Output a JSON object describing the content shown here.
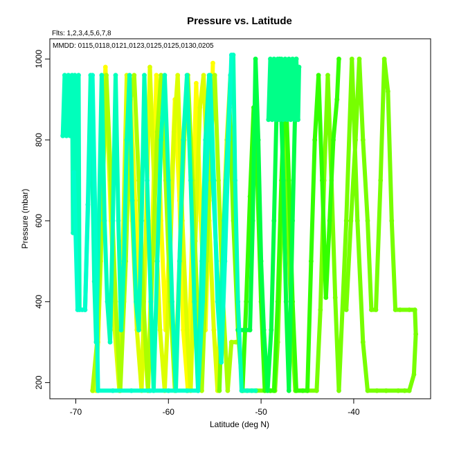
{
  "chart_data": {
    "type": "line",
    "title": "Pressure vs. Latitude",
    "subtitle_flts": "Flts: 1,2,3,4,5,6,7,8",
    "subtitle_mmdd": "MMDD: 0115,0118,0121,0123,0125,0125,0130,0205",
    "xlabel": "Latitude (deg N)",
    "ylabel": "Pressure (mbar)",
    "xlim": [
      -72.8,
      -31.7
    ],
    "ylim": [
      1050,
      160
    ],
    "y_reversed": true,
    "x_ticks": [
      -70,
      -60,
      -50,
      -40
    ],
    "y_ticks": [
      200,
      400,
      600,
      800,
      1000
    ],
    "marker": "filled-circle",
    "series": [
      {
        "color": "#FFFF00",
        "points": [
          [
            -68.1,
            180
          ],
          [
            -67.6,
            300
          ],
          [
            -67.2,
            600
          ],
          [
            -66.8,
            980
          ],
          [
            -66.2,
            600
          ],
          [
            -65.8,
            400
          ],
          [
            -65.3,
            180
          ],
          [
            -64.8,
            400
          ],
          [
            -64.4,
            700
          ],
          [
            -64.1,
            920
          ],
          [
            -63.6,
            650
          ],
          [
            -63.1,
            400
          ],
          [
            -62.6,
            300
          ],
          [
            -62.2,
            180
          ],
          [
            -61.7,
            600
          ],
          [
            -61.3,
            960
          ],
          [
            -60.8,
            600
          ],
          [
            -60.3,
            330
          ],
          [
            -59.8,
            600
          ],
          [
            -59.3,
            900
          ],
          [
            -58.8,
            650
          ],
          [
            -58.4,
            330
          ],
          [
            -57.9,
            180
          ],
          [
            -57.4,
            600
          ],
          [
            -57.0,
            940
          ],
          [
            -56.5,
            600
          ],
          [
            -56.0,
            330
          ],
          [
            -55.6,
            650
          ],
          [
            -55.2,
            990
          ]
        ]
      },
      {
        "color": "#DDFF00",
        "points": [
          [
            -67.8,
            180
          ],
          [
            -67.3,
            500
          ],
          [
            -66.9,
            960
          ],
          [
            -66.3,
            700
          ],
          [
            -65.8,
            330
          ],
          [
            -65.3,
            180
          ],
          [
            -64.9,
            550
          ],
          [
            -64.5,
            960
          ],
          [
            -63.9,
            600
          ],
          [
            -63.4,
            330
          ],
          [
            -62.9,
            180
          ],
          [
            -62.4,
            600
          ],
          [
            -62.0,
            980
          ],
          [
            -61.4,
            600
          ],
          [
            -60.9,
            330
          ],
          [
            -60.4,
            180
          ],
          [
            -59.9,
            450
          ],
          [
            -59.4,
            820
          ],
          [
            -59.0,
            960
          ],
          [
            -58.5,
            600
          ],
          [
            -58.0,
            330
          ],
          [
            -57.6,
            180
          ],
          [
            -57.1,
            550
          ],
          [
            -56.6,
            880
          ],
          [
            -56.2,
            960
          ],
          [
            -55.6,
            600
          ],
          [
            -55.1,
            330
          ],
          [
            -54.7,
            180
          ],
          [
            -54.2,
            500
          ],
          [
            -53.7,
            800
          ],
          [
            -53.3,
            960
          ]
        ]
      },
      {
        "color": "#AAFF00",
        "points": [
          [
            -68.2,
            180
          ],
          [
            -67.7,
            300
          ],
          [
            -67.2,
            600
          ],
          [
            -66.7,
            960
          ],
          [
            -66.2,
            700
          ],
          [
            -65.7,
            400
          ],
          [
            -65.2,
            180
          ],
          [
            -64.6,
            500
          ],
          [
            -64.1,
            900
          ],
          [
            -63.7,
            960
          ],
          [
            -63.2,
            700
          ],
          [
            -62.7,
            400
          ],
          [
            -62.2,
            180
          ],
          [
            -61.7,
            500
          ],
          [
            -61.2,
            820
          ],
          [
            -60.8,
            960
          ],
          [
            -60.3,
            700
          ],
          [
            -59.8,
            400
          ],
          [
            -59.3,
            180
          ],
          [
            -58.8,
            500
          ],
          [
            -58.3,
            800
          ],
          [
            -57.9,
            960
          ],
          [
            -57.4,
            700
          ],
          [
            -56.9,
            400
          ],
          [
            -56.4,
            180
          ],
          [
            -55.9,
            500
          ],
          [
            -55.4,
            800
          ],
          [
            -55.0,
            960
          ],
          [
            -54.6,
            700
          ],
          [
            -54.1,
            400
          ],
          [
            -53.6,
            180
          ],
          [
            -53.2,
            300
          ],
          [
            -52.7,
            300
          ]
        ]
      },
      {
        "color": "#77FF00",
        "points": [
          [
            -54.5,
            180
          ],
          [
            -54.2,
            400
          ],
          [
            -53.8,
            700
          ],
          [
            -53.4,
            880
          ],
          [
            -53.0,
            600
          ],
          [
            -52.5,
            330
          ],
          [
            -52.0,
            180
          ],
          [
            -50.5,
            180
          ],
          [
            -49.0,
            180
          ],
          [
            -48.5,
            180
          ],
          [
            -48.2,
            300
          ],
          [
            -47.8,
            600
          ],
          [
            -47.5,
            900
          ],
          [
            -47.1,
            600
          ],
          [
            -46.7,
            330
          ],
          [
            -46.3,
            180
          ],
          [
            -45.0,
            180
          ],
          [
            -44.0,
            180
          ],
          [
            -43.6,
            380
          ],
          [
            -43.2,
            700
          ],
          [
            -42.8,
            960
          ],
          [
            -42.4,
            700
          ],
          [
            -42.0,
            410
          ],
          [
            -41.6,
            180
          ],
          [
            -40.8,
            600
          ],
          [
            -40.2,
            1000
          ],
          [
            -39.6,
            600
          ],
          [
            -39.0,
            300
          ],
          [
            -38.5,
            180
          ],
          [
            -37.5,
            180
          ],
          [
            -36.5,
            180
          ],
          [
            -35.2,
            180
          ],
          [
            -34.5,
            180
          ],
          [
            -34.0,
            180
          ],
          [
            -33.5,
            220
          ],
          [
            -33.3,
            320
          ],
          [
            -33.4,
            380
          ],
          [
            -34.0,
            380
          ],
          [
            -35.0,
            380
          ],
          [
            -35.5,
            380
          ],
          [
            -35.9,
            600
          ],
          [
            -36.3,
            920
          ],
          [
            -36.7,
            1000
          ],
          [
            -37.1,
            700
          ],
          [
            -37.6,
            380
          ],
          [
            -38.1,
            380
          ],
          [
            -38.5,
            600
          ],
          [
            -39.0,
            800
          ],
          [
            -39.4,
            1000
          ],
          [
            -39.8,
            800
          ],
          [
            -40.3,
            600
          ],
          [
            -40.8,
            380
          ]
        ]
      },
      {
        "color": "#33FF00",
        "points": [
          [
            -52.0,
            180
          ],
          [
            -51.6,
            400
          ],
          [
            -51.2,
            660
          ],
          [
            -50.8,
            880
          ],
          [
            -50.4,
            700
          ],
          [
            -50.0,
            400
          ],
          [
            -49.6,
            180
          ],
          [
            -49.0,
            180
          ],
          [
            -48.6,
            180
          ],
          [
            -48.2,
            400
          ],
          [
            -47.8,
            700
          ],
          [
            -47.4,
            960
          ],
          [
            -47.0,
            700
          ],
          [
            -46.6,
            400
          ],
          [
            -46.2,
            180
          ],
          [
            -45.5,
            180
          ],
          [
            -45.0,
            180
          ],
          [
            -44.6,
            500
          ],
          [
            -44.2,
            800
          ],
          [
            -43.8,
            960
          ],
          [
            -43.4,
            700
          ],
          [
            -43.0,
            410
          ],
          [
            -42.6,
            600
          ],
          [
            -42.2,
            800
          ],
          [
            -41.8,
            900
          ],
          [
            -41.6,
            1000
          ]
        ]
      },
      {
        "color": "#00FF44",
        "points": [
          [
            -52.5,
            330
          ],
          [
            -51.2,
            330
          ],
          [
            -50.9,
            600
          ],
          [
            -50.6,
            1000
          ],
          [
            -50.3,
            800
          ],
          [
            -50.0,
            500
          ],
          [
            -49.7,
            330
          ],
          [
            -49.3,
            180
          ],
          [
            -48.9,
            330
          ],
          [
            -48.6,
            600
          ],
          [
            -48.3,
            900
          ],
          [
            -48.0,
            1000
          ],
          [
            -47.6,
            700
          ],
          [
            -47.3,
            400
          ],
          [
            -47.0,
            180
          ],
          [
            -46.6,
            600
          ],
          [
            -46.2,
            1000
          ]
        ]
      },
      {
        "color": "#00FF88",
        "points": [
          [
            -49.2,
            850
          ],
          [
            -49.0,
            1000
          ],
          [
            -48.8,
            850
          ],
          [
            -48.6,
            1000
          ],
          [
            -48.4,
            850
          ],
          [
            -48.2,
            1000
          ],
          [
            -48.0,
            850
          ],
          [
            -47.8,
            1000
          ],
          [
            -47.6,
            850
          ],
          [
            -47.4,
            1000
          ],
          [
            -47.2,
            850
          ],
          [
            -47.0,
            1000
          ],
          [
            -46.8,
            850
          ],
          [
            -46.6,
            1000
          ],
          [
            -46.4,
            850
          ],
          [
            -46.2,
            1000
          ],
          [
            -46.0,
            850
          ],
          [
            -45.9,
            980
          ]
        ]
      },
      {
        "color": "#00FFBB",
        "points": [
          [
            -71.4,
            810
          ],
          [
            -71.2,
            960
          ],
          [
            -71.0,
            810
          ],
          [
            -70.8,
            960
          ],
          [
            -70.6,
            810
          ],
          [
            -70.4,
            960
          ],
          [
            -70.3,
            570
          ],
          [
            -70.1,
            960
          ],
          [
            -69.9,
            560
          ],
          [
            -69.7,
            960
          ],
          [
            -69.6,
            380
          ],
          [
            -69.3,
            380
          ],
          [
            -69.0,
            380
          ],
          [
            -68.7,
            640
          ],
          [
            -68.4,
            960
          ],
          [
            -68.2,
            700
          ],
          [
            -68.0,
            450
          ],
          [
            -67.8,
            300
          ],
          [
            -67.5,
            600
          ],
          [
            -67.2,
            960
          ],
          [
            -66.9,
            600
          ],
          [
            -66.6,
            400
          ],
          [
            -66.3,
            300
          ],
          [
            -66.0,
            600
          ],
          [
            -65.7,
            960
          ],
          [
            -65.4,
            600
          ],
          [
            -65.1,
            330
          ],
          [
            -64.8,
            500
          ],
          [
            -64.5,
            800
          ],
          [
            -64.2,
            960
          ],
          [
            -63.9,
            650
          ],
          [
            -63.5,
            400
          ],
          [
            -63.2,
            330
          ],
          [
            -62.9,
            600
          ],
          [
            -62.6,
            960
          ],
          [
            -62.3,
            700
          ],
          [
            -61.9,
            400
          ],
          [
            -61.6,
            180
          ],
          [
            -61.2,
            500
          ],
          [
            -60.8,
            800
          ],
          [
            -60.4,
            960
          ],
          [
            -60.0,
            700
          ],
          [
            -59.6,
            400
          ],
          [
            -59.2,
            180
          ],
          [
            -58.8,
            500
          ],
          [
            -58.4,
            800
          ],
          [
            -58.0,
            960
          ],
          [
            -57.6,
            700
          ],
          [
            -57.2,
            400
          ],
          [
            -56.8,
            180
          ],
          [
            -56.4,
            500
          ],
          [
            -56.0,
            800
          ],
          [
            -55.6,
            960
          ],
          [
            -55.2,
            700
          ],
          [
            -54.8,
            500
          ],
          [
            -54.4,
            330
          ],
          [
            -54.0,
            600
          ],
          [
            -53.6,
            800
          ],
          [
            -53.3,
            960
          ],
          [
            -53.0,
            1010
          ],
          [
            -52.8,
            700
          ],
          [
            -52.5,
            400
          ],
          [
            -52.1,
            180
          ],
          [
            -51.5,
            180
          ],
          [
            -51.0,
            180
          ],
          [
            -50.6,
            180
          ]
        ]
      },
      {
        "color": "#00FFCC",
        "points": [
          [
            -70.2,
            720
          ],
          [
            -69.8,
            380
          ],
          [
            -69.0,
            380
          ],
          [
            -68.6,
            700
          ],
          [
            -68.2,
            960
          ],
          [
            -67.9,
            600
          ],
          [
            -67.6,
            180
          ],
          [
            -66.0,
            180
          ],
          [
            -64.0,
            180
          ],
          [
            -62.0,
            180
          ],
          [
            -60.0,
            180
          ],
          [
            -58.0,
            180
          ],
          [
            -56.8,
            180
          ],
          [
            -56.3,
            400
          ],
          [
            -55.9,
            700
          ],
          [
            -55.5,
            960
          ],
          [
            -55.1,
            700
          ],
          [
            -54.7,
            400
          ],
          [
            -54.3,
            250
          ],
          [
            -53.9,
            500
          ],
          [
            -53.5,
            800
          ],
          [
            -53.2,
            1010
          ]
        ]
      }
    ]
  }
}
